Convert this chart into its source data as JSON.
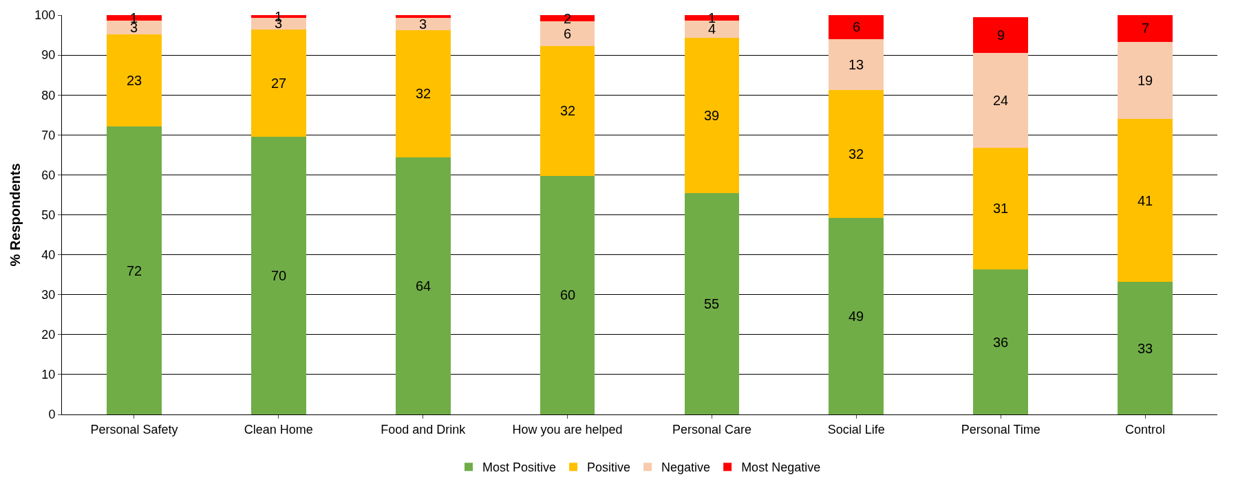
{
  "chart_data": {
    "type": "bar",
    "stacked": true,
    "ylabel": "% Respondents",
    "categories": [
      "Personal Safety",
      "Clean Home",
      "Food and Drink",
      "How you are helped",
      "Personal Care",
      "Social Life",
      "Personal Time",
      "Control"
    ],
    "series": [
      {
        "name": "Most Positive",
        "color": "#70ad47",
        "values": [
          72.1,
          69.5,
          64.3,
          59.8,
          55.4,
          49.3,
          36.3,
          33.2
        ],
        "value_labels": [
          "72",
          "70",
          "64",
          "60",
          "55",
          "49",
          "36",
          "33"
        ]
      },
      {
        "name": "Positive",
        "color": "#ffc000",
        "values": [
          23.1,
          26.9,
          32,
          32.4,
          38.9,
          31.9,
          30.5,
          40.8
        ],
        "value_labels": [
          "23",
          "27",
          "32",
          "32",
          "39",
          "32",
          "31",
          "41"
        ]
      },
      {
        "name": "Negative",
        "color": "#f8cbad",
        "values": [
          3.5,
          2.9,
          3,
          6.2,
          4.4,
          12.8,
          23.8,
          19.3
        ],
        "value_labels": [
          "3",
          "3",
          "3",
          "6",
          "4",
          "13",
          "24",
          "19"
        ]
      },
      {
        "name": "Most Negative",
        "color": "#ff0000",
        "values": [
          1.3,
          0.7,
          0.7,
          1.6,
          1.3,
          6,
          8.9,
          6.7
        ],
        "value_labels": [
          "1",
          "1",
          null,
          "2",
          "1",
          "6",
          "9",
          "7"
        ]
      }
    ],
    "ylim": [
      0,
      100
    ],
    "yticks": [
      0,
      10,
      20,
      30,
      40,
      50,
      60,
      70,
      80,
      90,
      100
    ],
    "grid": "y",
    "legend": "bottom"
  }
}
